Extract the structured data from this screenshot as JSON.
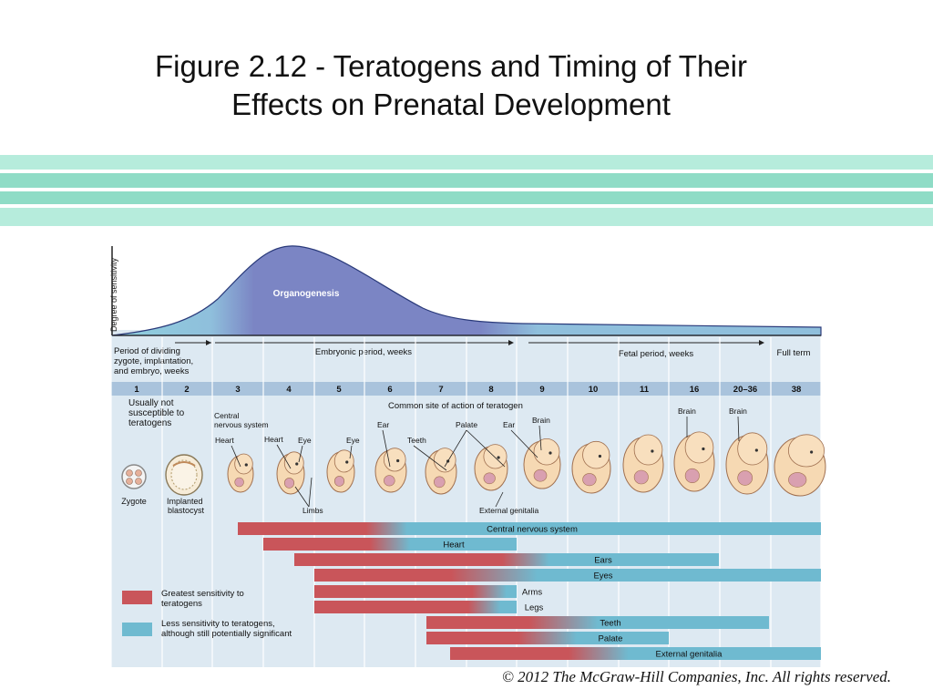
{
  "slide": {
    "title_line1": "Figure 2.12 - Teratogens and Timing of Their",
    "title_line2": "Effects on Prenatal Development",
    "copyright": "© 2012 The McGraw-Hill Companies, Inc. All rights reserved."
  },
  "colors": {
    "stripe_light": "#b6ecdc",
    "stripe_dark": "#8fdcc6",
    "panel_bg": "#dde9f2",
    "curve_fill": "#7b85c4",
    "week_band": "#a9c3dc",
    "greatest": "#c9555a",
    "less": "#6fbad0"
  },
  "figure": {
    "y_axis_label": "Degree of sensitivity",
    "curve_label": "Organogenesis",
    "periods": {
      "early_line1": "Period of dividing",
      "early_line2": "zygote, implantation,",
      "early_line3": "and embryo, weeks",
      "embryonic": "Embryonic period, weeks",
      "fetal": "Fetal period, weeks",
      "full_term": "Full term"
    },
    "weeks": [
      "1",
      "2",
      "3",
      "4",
      "5",
      "6",
      "7",
      "8",
      "9",
      "10",
      "11",
      "16",
      "20–36",
      "38"
    ],
    "not_susceptible_line1": "Usually not",
    "not_susceptible_line2": "susceptible to",
    "not_susceptible_line3": "teratogens",
    "common_site": "Common site of action of teratogen",
    "labels": {
      "cns_line1": "Central",
      "cns_line2": "nervous system",
      "heart_a": "Heart",
      "heart_b": "Heart",
      "eye_a": "Eye",
      "eye_b": "Eye",
      "ear_a": "Ear",
      "teeth": "Teeth",
      "palate": "Palate",
      "ear_b": "Ear",
      "brain_a": "Brain",
      "brain_b": "Brain",
      "brain_c": "Brain",
      "limbs": "Limbs",
      "external_genitalia": "External genitalia",
      "zygote": "Zygote",
      "implanted_line1": "Implanted",
      "implanted_line2": "blastocyst"
    },
    "bars": [
      {
        "label": "Central nervous system"
      },
      {
        "label": "Heart"
      },
      {
        "label": "Ears"
      },
      {
        "label": "Eyes"
      },
      {
        "label": "Arms"
      },
      {
        "label": "Legs"
      },
      {
        "label": "Teeth"
      },
      {
        "label": "Palate"
      },
      {
        "label": "External genitalia"
      }
    ],
    "legend": {
      "greatest_line1": "Greatest sensitivity to",
      "greatest_line2": " teratogens",
      "less_line1": "Less sensitivity to teratogens,",
      "less_line2": "although still potentially significant"
    }
  }
}
